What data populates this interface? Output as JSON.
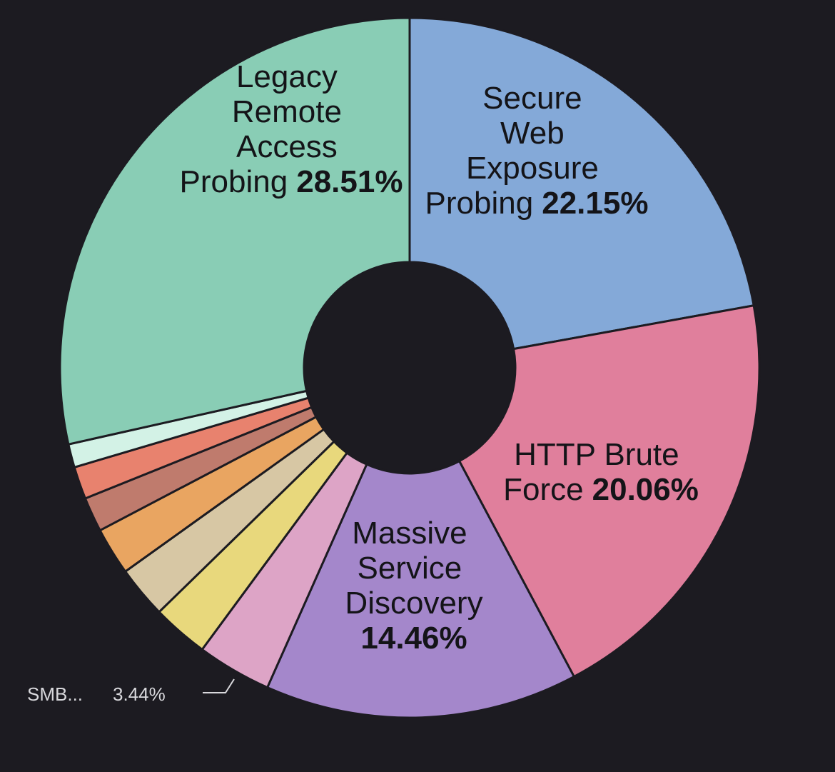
{
  "chart_data": {
    "type": "donut",
    "categories": [
      "Secure Web Exposure Probing",
      "HTTP Brute Force",
      "Massive Service Discovery",
      "SMB...",
      null,
      null,
      null,
      null,
      null,
      null,
      "Legacy Remote Access Probing"
    ],
    "values": [
      22.15,
      20.06,
      14.46,
      3.44,
      2.6,
      2.4,
      2.2,
      1.6,
      1.5,
      1.08,
      28.51
    ],
    "value_labels": [
      "22.15%",
      "20.06%",
      "14.46%",
      "3.44%",
      null,
      null,
      null,
      null,
      null,
      null,
      "28.51%"
    ],
    "colors": [
      "#84a9d8",
      "#e07f9c",
      "#a487cb",
      "#dda4c6",
      "#e8d87c",
      "#d7c7a4",
      "#e9a561",
      "#bf7b6d",
      "#e8826e",
      "#d3f2e6",
      "#89cdb5"
    ]
  }
}
